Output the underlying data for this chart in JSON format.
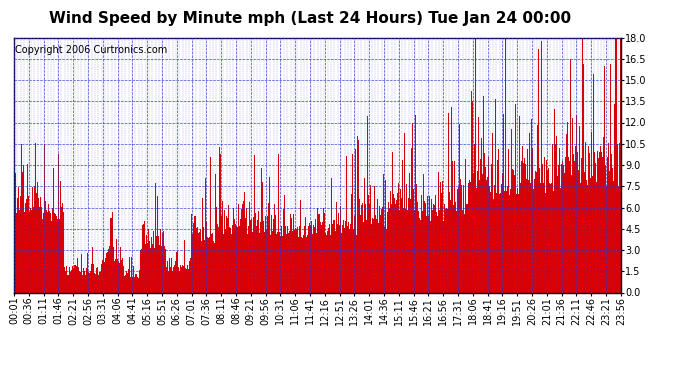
{
  "title": "Wind Speed by Minute mph (Last 24 Hours) Tue Jan 24 00:00",
  "copyright": "Copyright 2006 Curtronics.com",
  "yticks": [
    0.0,
    1.5,
    3.0,
    4.5,
    6.0,
    7.5,
    9.0,
    10.5,
    12.0,
    13.5,
    15.0,
    16.5,
    18.0
  ],
  "ylim": [
    0.0,
    18.0
  ],
  "xtick_labels": [
    "00:01",
    "00:36",
    "01:11",
    "01:46",
    "02:21",
    "02:56",
    "03:31",
    "04:06",
    "04:41",
    "05:16",
    "05:51",
    "06:26",
    "07:01",
    "07:36",
    "08:11",
    "08:46",
    "09:21",
    "09:56",
    "10:31",
    "11:06",
    "11:41",
    "12:16",
    "12:51",
    "13:26",
    "14:01",
    "14:36",
    "15:11",
    "15:46",
    "16:21",
    "16:56",
    "17:31",
    "18:06",
    "18:41",
    "19:16",
    "19:51",
    "20:26",
    "21:01",
    "21:36",
    "22:11",
    "22:46",
    "23:21",
    "23:56"
  ],
  "bar_color": "#dd0000",
  "bg_color": "#ffffff",
  "grid_color": "#3333cc",
  "title_fontsize": 11,
  "copyright_fontsize": 7,
  "tick_fontsize": 7
}
